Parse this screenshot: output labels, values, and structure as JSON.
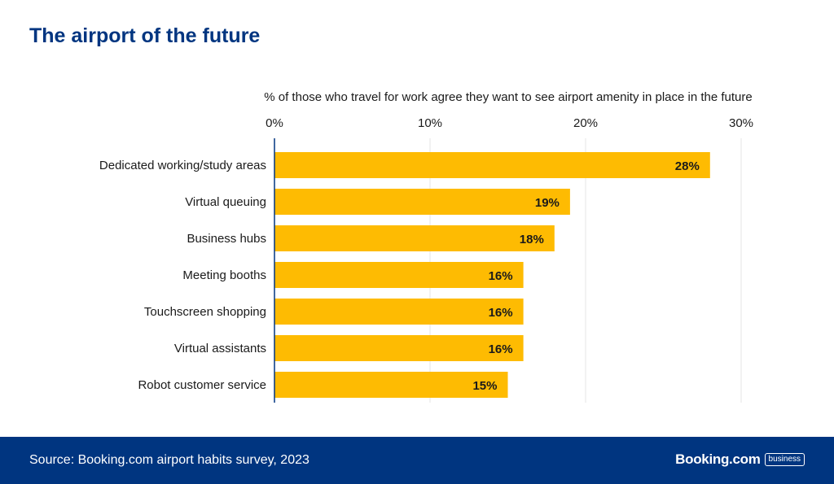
{
  "header": {
    "title": "The airport of the future"
  },
  "colors": {
    "bar": "#FEBB02",
    "title": "#003580",
    "footer_bg": "#003580",
    "grid": "#e4e4e4",
    "axis": "#003580"
  },
  "chart_data": {
    "type": "bar",
    "orientation": "horizontal",
    "title": "% of those who travel for work agree they want to see airport amenity in place in the future",
    "categories": [
      "Dedicated working/study areas",
      "Virtual queuing",
      "Business hubs",
      "Meeting booths",
      "Touchscreen shopping",
      "Virtual assistants",
      "Robot customer service"
    ],
    "values": [
      28,
      19,
      18,
      16,
      16,
      16,
      15
    ],
    "data_labels": [
      "28%",
      "19%",
      "18%",
      "16%",
      "16%",
      "16%",
      "15%"
    ],
    "xlim": [
      0,
      30
    ],
    "xticks": [
      0,
      10,
      20,
      30
    ],
    "xtick_labels": [
      "0%",
      "10%",
      "20%",
      "30%"
    ],
    "x_axis_position": "top",
    "grid": true,
    "legend": "none"
  },
  "footer": {
    "source": "Source: Booking.com airport habits survey, 2023",
    "brand": "Booking.com",
    "badge": "business"
  }
}
